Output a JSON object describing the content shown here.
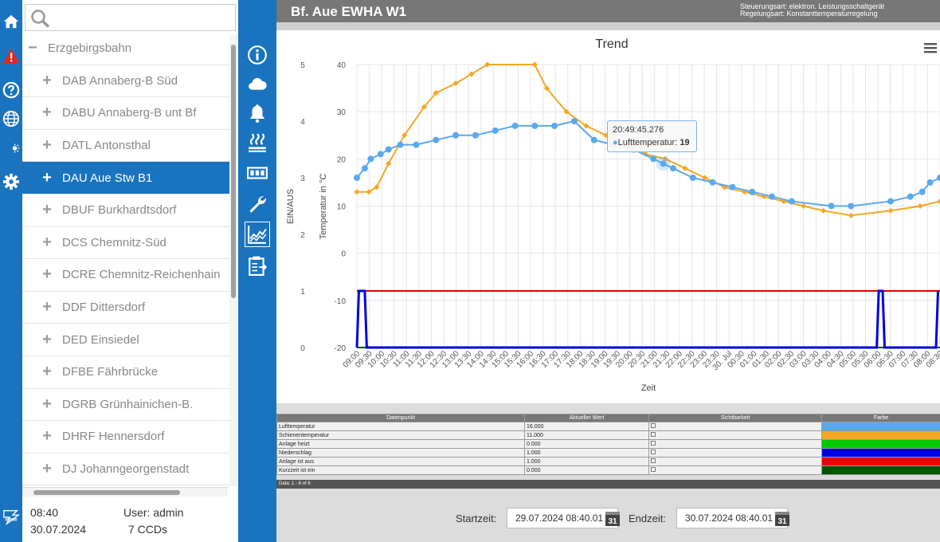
{
  "header": {
    "title": "Bf. Aue EWHA W1",
    "control_type": "Steuerungsart: elektron. Leistungsschaltgerät",
    "regulation_type": "Regelungsart: Konstanttemperaturregelung"
  },
  "search": {
    "placeholder": ""
  },
  "tree": {
    "root": "Erzgebirgsbahn",
    "items": [
      "DAB Annaberg-B Süd",
      "DABU Annaberg-B unt Bf",
      "DATL Antonsthal",
      "DAU Aue Stw B1",
      "DBUF Burkhardtsdorf",
      "DCS Chemnitz-Süd",
      "DCRE Chemnitz-Reichenhain",
      "DDF Dittersdorf",
      "DED Einsiedel",
      "DFBE Fährbrücke",
      "DGRB Grünhainichen-B.",
      "DHRF Hennersdorf",
      "DJ Johanngeorgenstadt"
    ],
    "selected_index": 3
  },
  "footer": {
    "time": "08:40",
    "user": "User: admin",
    "date": "30.07.2024",
    "ccds": "7 CCDs"
  },
  "rail_icons": [
    "home-icon",
    "warning-icon",
    "help-icon",
    "globe-icon",
    "day-night-icon",
    "gear-icon"
  ],
  "module_icons": [
    "info-icon",
    "cloud-icon",
    "bell-icon",
    "heating-icon",
    "counter-icon",
    "wrench-icon",
    "trend-chart-icon",
    "clipboard-icon"
  ],
  "tooltip": {
    "time": "20:49:45.276",
    "series": "Lufttemperatur",
    "value": "19"
  },
  "chart_data": {
    "type": "line",
    "title": "Trend",
    "xlabel": "Zeit",
    "ylabel_left": "EIN/AUS",
    "ylabel_right": "Temperatur in °C",
    "x_ticks": [
      "09:00",
      "09:30",
      "10:00",
      "10:30",
      "11:00",
      "11:30",
      "12:00",
      "12:30",
      "13:00",
      "13:30",
      "14:00",
      "14:30",
      "15:00",
      "15:30",
      "16:00",
      "16:30",
      "17:00",
      "17:30",
      "18:00",
      "18:30",
      "19:00",
      "19:30",
      "20:00",
      "20:30",
      "21:00",
      "21:30",
      "22:00",
      "22:30",
      "23:00",
      "23:30",
      "30. Jul",
      "00:30",
      "01:00",
      "01:30",
      "02:00",
      "02:30",
      "03:00",
      "03:30",
      "04:00",
      "04:30",
      "05:00",
      "05:30",
      "06:00",
      "06:30",
      "07:00",
      "07:30",
      "08:00",
      "08:30"
    ],
    "y_left_ticks": [
      0,
      1,
      2,
      3,
      4,
      5
    ],
    "y_temp_ticks": [
      -20,
      -10,
      0,
      10,
      20,
      30,
      40
    ],
    "y_temp_range": [
      -20,
      40
    ],
    "y_state_range": [
      0,
      5
    ],
    "grid": true,
    "series": [
      {
        "name": "Lufttemperatur",
        "color": "#5aa9ee",
        "axis": "temp",
        "points": [
          [
            0,
            16
          ],
          [
            0.4,
            18
          ],
          [
            0.7,
            20
          ],
          [
            1.2,
            21
          ],
          [
            1.6,
            22
          ],
          [
            2.2,
            23
          ],
          [
            3,
            23
          ],
          [
            4,
            24
          ],
          [
            5,
            25
          ],
          [
            6,
            25
          ],
          [
            7,
            26
          ],
          [
            8,
            27
          ],
          [
            9,
            27
          ],
          [
            10,
            27
          ],
          [
            11,
            28
          ],
          [
            12,
            24
          ],
          [
            13,
            23
          ],
          [
            14,
            22
          ],
          [
            15,
            20
          ],
          [
            15.5,
            19
          ],
          [
            16,
            18
          ],
          [
            17,
            16
          ],
          [
            18,
            15
          ],
          [
            19,
            14
          ],
          [
            20,
            13
          ],
          [
            21,
            12
          ],
          [
            22,
            11
          ],
          [
            24,
            10
          ],
          [
            25,
            10
          ],
          [
            27,
            11
          ],
          [
            28,
            12
          ],
          [
            28.6,
            13
          ],
          [
            29,
            15
          ],
          [
            29.5,
            16
          ]
        ]
      },
      {
        "name": "Schienentemperatur",
        "color": "#f5a623",
        "axis": "temp",
        "points": [
          [
            0,
            13
          ],
          [
            0.6,
            13
          ],
          [
            1,
            14
          ],
          [
            1.6,
            19
          ],
          [
            2.4,
            25
          ],
          [
            3.4,
            31
          ],
          [
            4,
            34
          ],
          [
            5,
            36
          ],
          [
            5.8,
            38
          ],
          [
            6.6,
            40
          ],
          [
            9,
            40
          ],
          [
            9.6,
            35
          ],
          [
            10.6,
            30
          ],
          [
            11.6,
            27
          ],
          [
            12.6,
            25
          ],
          [
            13.6,
            23
          ],
          [
            14.6,
            21
          ],
          [
            15.6,
            20
          ],
          [
            16.6,
            18
          ],
          [
            17.6,
            16
          ],
          [
            18.6,
            14
          ],
          [
            19.6,
            13
          ],
          [
            20.6,
            12
          ],
          [
            21.6,
            11
          ],
          [
            22.6,
            10
          ],
          [
            23.6,
            9
          ],
          [
            25,
            8
          ],
          [
            27,
            9
          ],
          [
            28.5,
            10
          ],
          [
            29.5,
            11
          ]
        ]
      },
      {
        "name": "Anlage heizt",
        "color": "#00cc00",
        "axis": "state",
        "points": [
          [
            0,
            0
          ],
          [
            29.5,
            0
          ]
        ]
      },
      {
        "name": "Niederschlag",
        "color": "#0000dd",
        "axis": "state",
        "points": [
          [
            0,
            0
          ],
          [
            0.1,
            1
          ],
          [
            0.4,
            1
          ],
          [
            0.5,
            0
          ],
          [
            26.3,
            0
          ],
          [
            26.4,
            1
          ],
          [
            26.6,
            1
          ],
          [
            26.7,
            0
          ],
          [
            29.3,
            0
          ],
          [
            29.4,
            1
          ]
        ]
      },
      {
        "name": "Anlage ist aus",
        "color": "#e60000",
        "axis": "state",
        "points": [
          [
            0,
            1
          ],
          [
            29.5,
            1
          ]
        ]
      },
      {
        "name": "Kurzzeit ist ein",
        "color": "#005500",
        "axis": "state",
        "points": [
          [
            0,
            0
          ],
          [
            29.5,
            0
          ]
        ]
      }
    ]
  },
  "table": {
    "headers": [
      "Datenpunkt",
      "Aktueller Wert",
      "Sichtbarkeit",
      "Farbe"
    ],
    "rows": [
      {
        "name": "Lufttemperatur",
        "value": "16.000",
        "color": "#5aa9ee"
      },
      {
        "name": "Schienentemperatur",
        "value": "11.000",
        "color": "#f5a623"
      },
      {
        "name": "Anlage heizt",
        "value": "0.000",
        "color": "#00cc00"
      },
      {
        "name": "Niederschlag",
        "value": "1.000",
        "color": "#0000dd"
      },
      {
        "name": "Anlage ist aus",
        "value": "1.000",
        "color": "#e60000"
      },
      {
        "name": "Kurzzeit ist ein",
        "value": "0.000",
        "color": "#005500"
      }
    ],
    "footer": "Data: 1 - 6 of 6"
  },
  "time_range": {
    "start_label": "Startzeit:",
    "start_value": "29.07.2024 08:40.01",
    "end_label": "Endzeit:",
    "end_value": "30.07.2024 08:40.01",
    "calendar_day": "31"
  }
}
